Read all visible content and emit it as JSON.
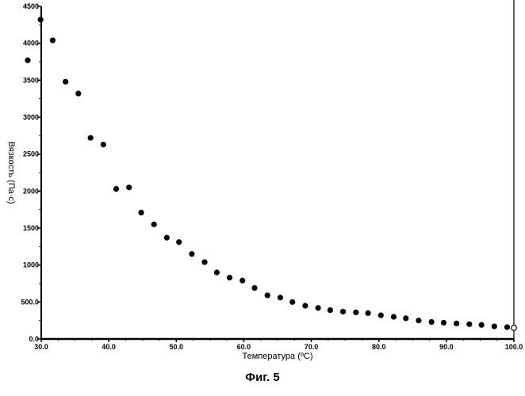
{
  "figure": {
    "caption": "Фиг. 5"
  },
  "chart_data": {
    "type": "scatter",
    "xlabel": "Температура (ºС)",
    "ylabel": "Вязкость (Па·с)",
    "xlim": [
      30.0,
      100.0
    ],
    "ylim": [
      0,
      4500
    ],
    "x_ticks": [
      30.0,
      40.0,
      50.0,
      60.0,
      70.0,
      80.0,
      90.0,
      100.0
    ],
    "x_tick_labels": [
      "30.0",
      "40.0",
      "50.0",
      "60.0",
      "70.0",
      "80.0",
      "90.0",
      "100.0"
    ],
    "y_ticks": [
      0,
      500,
      1000,
      1500,
      2000,
      2500,
      3000,
      3500,
      4000,
      4500
    ],
    "y_tick_labels": [
      "0.0",
      "500.0",
      "1000",
      "1500",
      "2000",
      "2500",
      "3000",
      "3500",
      "4000",
      "4500"
    ],
    "grid": false,
    "legend": "none",
    "marker_color": "#000000",
    "x": [
      28.0,
      29.9,
      31.7,
      33.6,
      35.5,
      37.3,
      39.2,
      41.1,
      43.0,
      44.8,
      46.7,
      48.6,
      50.4,
      52.3,
      54.2,
      56.0,
      57.9,
      59.8,
      61.6,
      63.5,
      65.4,
      67.2,
      69.1,
      71.0,
      72.8,
      74.7,
      76.6,
      78.4,
      80.3,
      82.2,
      84.0,
      85.9,
      87.8,
      89.6,
      91.5,
      93.4,
      95.2,
      97.1,
      99.0,
      100.0
    ],
    "y": [
      3770,
      4320,
      4040,
      3480,
      3320,
      2720,
      2630,
      2030,
      2050,
      1710,
      1550,
      1370,
      1310,
      1150,
      1040,
      900,
      830,
      790,
      690,
      590,
      560,
      500,
      450,
      420,
      390,
      370,
      360,
      350,
      320,
      300,
      280,
      250,
      230,
      220,
      210,
      200,
      190,
      170,
      160,
      150
    ]
  }
}
